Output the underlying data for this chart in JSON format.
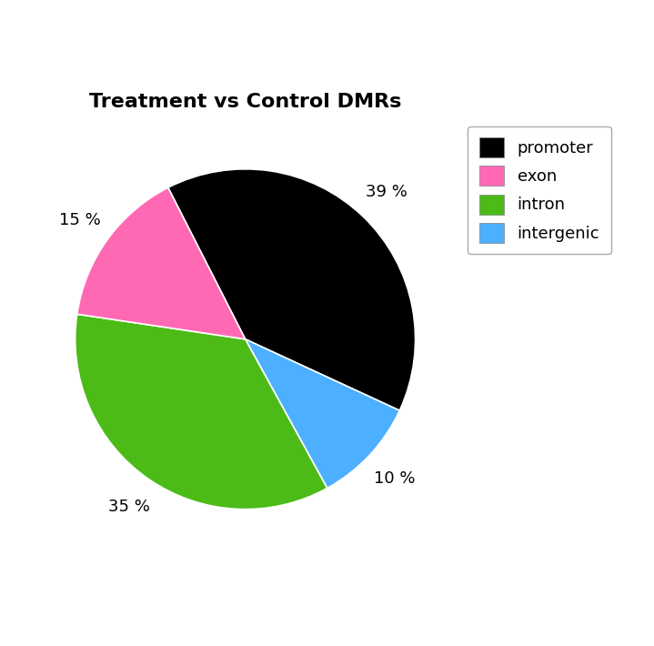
{
  "title": "Treatment vs Control DMRs",
  "title_fontsize": 16,
  "label_fontsize": 13,
  "legend_fontsize": 13,
  "background_color": "#ffffff",
  "plot_values": [
    39,
    10,
    35,
    15
  ],
  "plot_colors": [
    "#000000",
    "#4DAFFF",
    "#4CBB17",
    "#FF69B4"
  ],
  "plot_labels_order": [
    "promoter",
    "intergenic",
    "intron",
    "exon"
  ],
  "pct_map": {
    "promoter": "39 %",
    "intergenic": "10 %",
    "intron": "35 %",
    "exon": "15 %"
  },
  "startangle": 117,
  "label_distance": 1.2,
  "legend_order": [
    [
      "promoter",
      "#000000"
    ],
    [
      "exon",
      "#FF69B4"
    ],
    [
      "intron",
      "#4CBB17"
    ],
    [
      "intergenic",
      "#4DAFFF"
    ]
  ]
}
